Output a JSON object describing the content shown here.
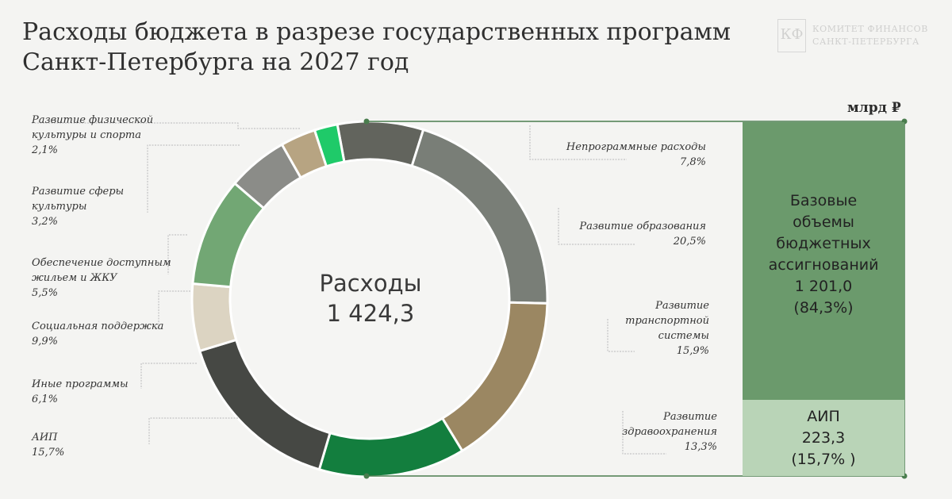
{
  "title_line1": "Расходы бюджета в разрезе государственных программ",
  "title_line2": "Санкт-Петербурга на 2027 год",
  "logo": {
    "line1": "КОМИТЕТ ФИНАНСОВ",
    "line2": "САНКТ-ПЕТЕРБУРГА",
    "mark": "КФ"
  },
  "unit": "млрд ₽",
  "center": {
    "label": "Расходы",
    "value": "1 424,3"
  },
  "boxes": {
    "base": {
      "text": "Базовые\nобъемы\nбюджетных\nассигнований\n1 201,0\n(84,3%)",
      "value": 1201.0,
      "percent": 84.3
    },
    "aip": {
      "text": "АИП\n223,3\n(15,7% )",
      "value": 223.3,
      "percent": 15.7
    }
  },
  "colors": {
    "background": "#f4f4f2",
    "base_box": "#6b9a6c",
    "aip_box": "#b9d4b7",
    "connector": "#4a7d4e"
  },
  "chart_data": {
    "type": "pie",
    "total": 1424.3,
    "unit": "млрд ₽",
    "slices": [
      {
        "name": "Непрограммные расходы",
        "percent": 7.8,
        "label": "Непрограммные расходы",
        "pct_label": "7,8%",
        "color": "#62645d"
      },
      {
        "name": "Развитие образования",
        "percent": 20.5,
        "label": "Развитие образования",
        "pct_label": "20,5%",
        "color": "#797e77"
      },
      {
        "name": "Развитие транспортной системы",
        "percent": 15.9,
        "label": "Развитие\nтранспортной\nсистемы",
        "pct_label": "15,9%",
        "color": "#9b8762"
      },
      {
        "name": "Развитие здравоохранения",
        "percent": 13.3,
        "label": "Развитие\nздравоохранения",
        "pct_label": "13,3%",
        "color": "#137e3e"
      },
      {
        "name": "АИП",
        "percent": 15.7,
        "label": "АИП",
        "pct_label": "15,7%",
        "color": "#464844"
      },
      {
        "name": "Иные программы",
        "percent": 6.1,
        "label": "Иные программы",
        "pct_label": "6,1%",
        "color": "#dcd4c2"
      },
      {
        "name": "Социальная поддержка",
        "percent": 9.9,
        "label": "Социальная поддержка",
        "pct_label": "9,9%",
        "color": "#72a774"
      },
      {
        "name": "Обеспечение доступным жильем и ЖКУ",
        "percent": 5.5,
        "label": "Обеспечение доступным\nжильем и ЖКУ",
        "pct_label": "5,5%",
        "color": "#8b8c88"
      },
      {
        "name": "Развитие сферы культуры",
        "percent": 3.2,
        "label": "Развитие сферы\nкультуры",
        "pct_label": "3,2%",
        "color": "#b7a482"
      },
      {
        "name": "Развитие физической культуры и спорта",
        "percent": 2.1,
        "label": "Развитие физической\nкультуры и спорта",
        "pct_label": "2,1%",
        "color": "#1fca69"
      }
    ]
  }
}
